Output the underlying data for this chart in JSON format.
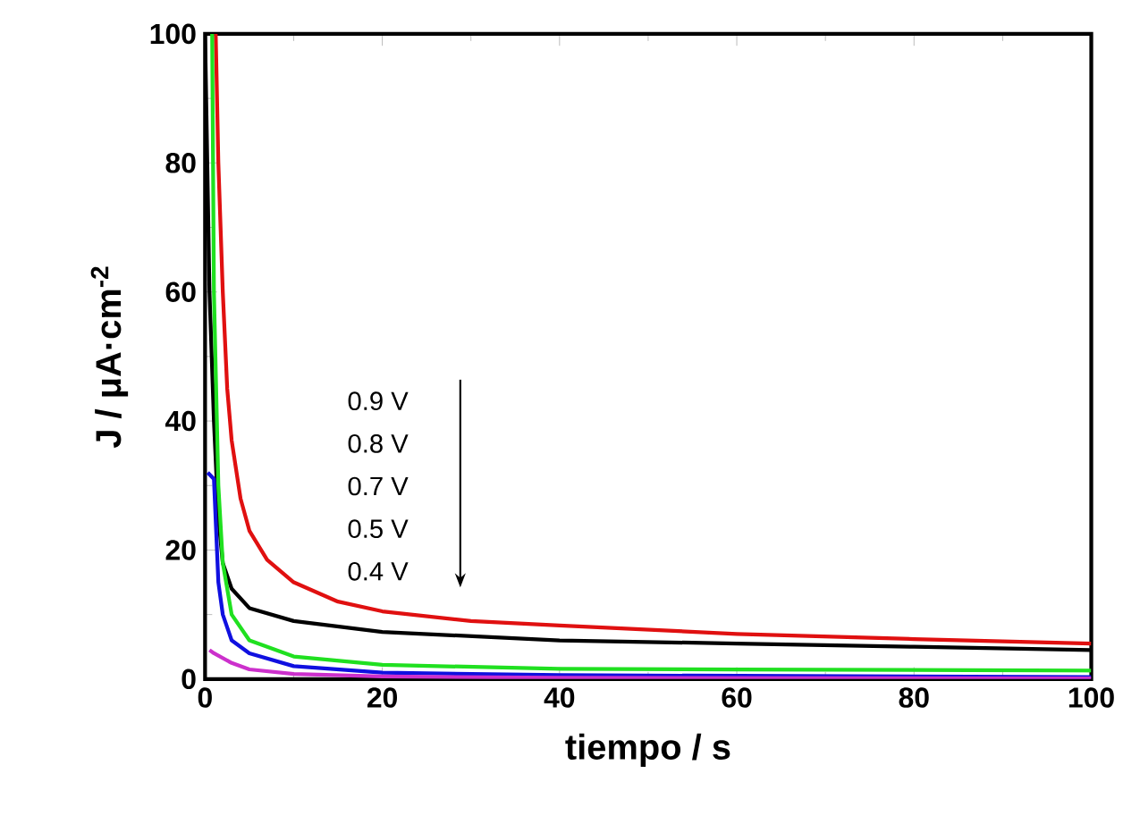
{
  "chart_data": {
    "type": "line",
    "xlabel": "tiempo / s",
    "ylabel": "J / μA·cm$^{-2}$",
    "xlim": [
      0,
      100
    ],
    "ylim": [
      0,
      100
    ],
    "xticks": [
      0,
      20,
      40,
      60,
      80,
      100
    ],
    "yticks": [
      0,
      20,
      40,
      60,
      80,
      100
    ],
    "grid": false,
    "marker": "none",
    "line_style": "solid",
    "annotations": [
      "0.9 V",
      "0.8 V",
      "0.7 V",
      "0.5 V",
      "0.4 V"
    ],
    "series": [
      {
        "color": "#e01010",
        "x": [
          1.2,
          1.5,
          2,
          2.5,
          3,
          4,
          5,
          7,
          10,
          15,
          20,
          30,
          40,
          60,
          80,
          100
        ],
        "values": [
          100,
          80,
          60,
          45,
          37,
          28,
          23,
          18.5,
          15,
          12,
          10.5,
          9,
          8.3,
          7,
          6.2,
          5.5
        ]
      },
      {
        "color": "#000000",
        "x": [
          0,
          0.5,
          1,
          1.5,
          2,
          3,
          5,
          10,
          20,
          40,
          60,
          80,
          100
        ],
        "values": [
          100,
          60,
          40,
          25,
          18,
          14,
          11,
          9,
          7.3,
          6,
          5.5,
          5,
          4.5
        ]
      },
      {
        "color": "#20e020",
        "x": [
          0.8,
          1,
          1.5,
          2,
          3,
          5,
          10,
          20,
          40,
          60,
          100
        ],
        "values": [
          100,
          60,
          30,
          18,
          10,
          6,
          3.5,
          2.2,
          1.6,
          1.5,
          1.3
        ]
      },
      {
        "color": "#1010e0",
        "x": [
          0.3,
          1,
          1.5,
          2,
          3,
          5,
          10,
          20,
          40,
          100
        ],
        "values": [
          32,
          31,
          15,
          10,
          6,
          4,
          2,
          1,
          0.6,
          0.3
        ]
      },
      {
        "color": "#cc30cc",
        "x": [
          0.5,
          1,
          3,
          5,
          10,
          20,
          40,
          100
        ],
        "values": [
          4.5,
          4,
          2.5,
          1.5,
          0.8,
          0.4,
          0.2,
          0.1
        ]
      }
    ]
  }
}
